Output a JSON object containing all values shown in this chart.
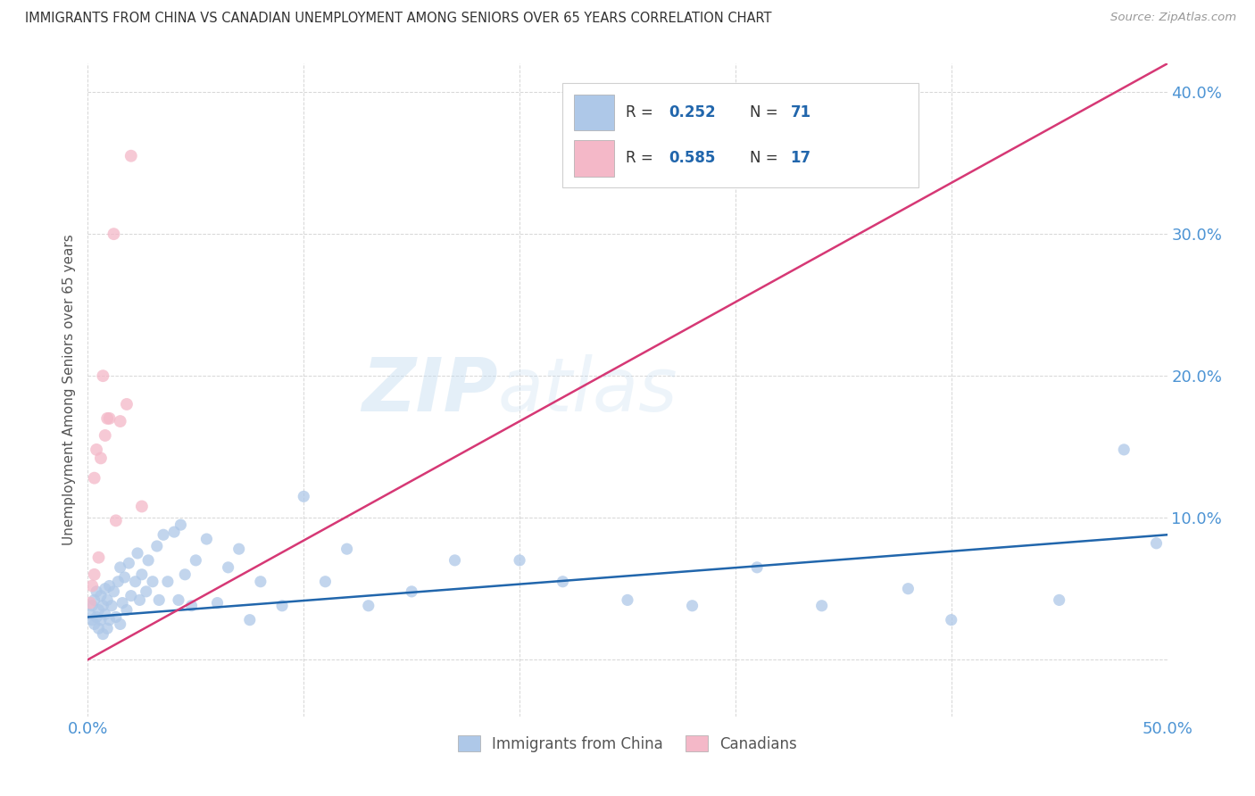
{
  "title": "IMMIGRANTS FROM CHINA VS CANADIAN UNEMPLOYMENT AMONG SENIORS OVER 65 YEARS CORRELATION CHART",
  "source": "Source: ZipAtlas.com",
  "ylabel": "Unemployment Among Seniors over 65 years",
  "xlim": [
    0.0,
    0.5
  ],
  "ylim": [
    -0.04,
    0.42
  ],
  "xtick_positions": [
    0.0,
    0.1,
    0.2,
    0.3,
    0.4,
    0.5
  ],
  "xticklabels": [
    "0.0%",
    "",
    "",
    "",
    "",
    "50.0%"
  ],
  "ytick_positions": [
    0.0,
    0.1,
    0.2,
    0.3,
    0.4
  ],
  "yticklabels": [
    "",
    "10.0%",
    "20.0%",
    "30.0%",
    "40.0%"
  ],
  "blue_color": "#aec8e8",
  "pink_color": "#f4b8c8",
  "blue_line_color": "#2166ac",
  "pink_line_color": "#d63875",
  "blue_scatter_x": [
    0.001,
    0.002,
    0.002,
    0.003,
    0.003,
    0.004,
    0.004,
    0.005,
    0.005,
    0.006,
    0.006,
    0.007,
    0.007,
    0.008,
    0.008,
    0.009,
    0.009,
    0.01,
    0.01,
    0.011,
    0.012,
    0.013,
    0.014,
    0.015,
    0.015,
    0.016,
    0.017,
    0.018,
    0.019,
    0.02,
    0.022,
    0.023,
    0.024,
    0.025,
    0.027,
    0.028,
    0.03,
    0.032,
    0.033,
    0.035,
    0.037,
    0.04,
    0.042,
    0.043,
    0.045,
    0.048,
    0.05,
    0.055,
    0.06,
    0.065,
    0.07,
    0.075,
    0.08,
    0.09,
    0.1,
    0.11,
    0.12,
    0.13,
    0.15,
    0.17,
    0.2,
    0.22,
    0.25,
    0.28,
    0.31,
    0.34,
    0.38,
    0.4,
    0.45,
    0.48,
    0.495
  ],
  "blue_scatter_y": [
    0.032,
    0.028,
    0.038,
    0.025,
    0.042,
    0.03,
    0.048,
    0.022,
    0.035,
    0.028,
    0.045,
    0.018,
    0.038,
    0.032,
    0.05,
    0.022,
    0.042,
    0.028,
    0.052,
    0.038,
    0.048,
    0.03,
    0.055,
    0.025,
    0.065,
    0.04,
    0.058,
    0.035,
    0.068,
    0.045,
    0.055,
    0.075,
    0.042,
    0.06,
    0.048,
    0.07,
    0.055,
    0.08,
    0.042,
    0.088,
    0.055,
    0.09,
    0.042,
    0.095,
    0.06,
    0.038,
    0.07,
    0.085,
    0.04,
    0.065,
    0.078,
    0.028,
    0.055,
    0.038,
    0.115,
    0.055,
    0.078,
    0.038,
    0.048,
    0.07,
    0.07,
    0.055,
    0.042,
    0.038,
    0.065,
    0.038,
    0.05,
    0.028,
    0.042,
    0.148,
    0.082
  ],
  "pink_scatter_x": [
    0.001,
    0.002,
    0.003,
    0.003,
    0.004,
    0.005,
    0.006,
    0.007,
    0.008,
    0.009,
    0.01,
    0.012,
    0.013,
    0.015,
    0.018,
    0.02,
    0.025
  ],
  "pink_scatter_y": [
    0.04,
    0.052,
    0.06,
    0.128,
    0.148,
    0.072,
    0.142,
    0.2,
    0.158,
    0.17,
    0.17,
    0.3,
    0.098,
    0.168,
    0.18,
    0.355,
    0.108
  ],
  "blue_line_x": [
    0.0,
    0.5
  ],
  "blue_line_y": [
    0.03,
    0.088
  ],
  "pink_line_x": [
    0.0,
    0.5
  ],
  "pink_line_y": [
    0.0,
    0.42
  ],
  "pink_trend_x": [
    0.0,
    0.5
  ],
  "pink_trend_y": [
    0.0,
    0.42
  ],
  "watermark_zip": "ZIP",
  "watermark_atlas": "atlas",
  "background_color": "#ffffff",
  "grid_color": "#cccccc",
  "tick_color": "#4d94d4",
  "label_color": "#555555"
}
